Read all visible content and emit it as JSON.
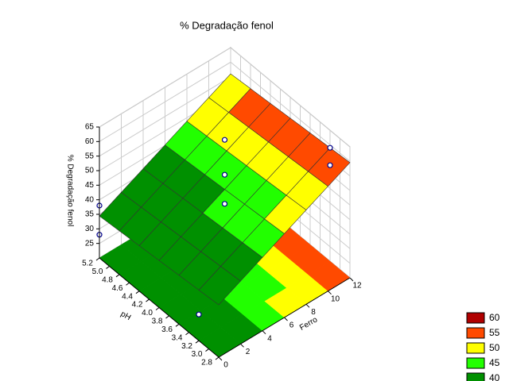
{
  "chart_data": {
    "type": "surface3d",
    "title": "% Degradação fenol",
    "x_label": "Ferro",
    "y_label": "pH",
    "z_label": "% Degradação fenol",
    "x": [
      0,
      2,
      4,
      6,
      8,
      10,
      12
    ],
    "y": [
      2.8,
      3.2,
      3.6,
      4.0,
      4.4,
      4.8,
      5.2
    ],
    "z": [
      [
        38,
        41.6,
        45.2,
        48.8,
        52.4,
        56,
        59.6
      ],
      [
        37.4,
        41,
        44.6,
        48.2,
        51.8,
        55.4,
        59
      ],
      [
        36.8,
        40.4,
        44,
        47.6,
        51.2,
        54.8,
        58.4
      ],
      [
        36.2,
        39.8,
        43.4,
        47,
        50.6,
        54.2,
        57.8
      ],
      [
        35.6,
        39.2,
        42.8,
        46.4,
        50,
        53.6,
        57.2
      ],
      [
        35,
        38.6,
        42.2,
        45.8,
        49.4,
        53,
        56.6
      ],
      [
        34.4,
        38,
        41.6,
        45.2,
        48.8,
        52.4,
        56
      ]
    ],
    "points": {
      "x": [
        0,
        0,
        6,
        6,
        6,
        12,
        12,
        0
      ],
      "y": [
        5.2,
        5.2,
        4.0,
        4.0,
        4.0,
        3.2,
        3.2,
        3.2
      ],
      "z": [
        38,
        28,
        64,
        52,
        42,
        59,
        53,
        29
      ]
    },
    "xlim": [
      0,
      12
    ],
    "ylim": [
      2.8,
      5.2
    ],
    "zlim": [
      20,
      65
    ],
    "xticks": [
      0,
      2,
      4,
      6,
      8,
      10,
      12
    ],
    "yticks": [
      2.8,
      {
        "value": 3,
        "label": "3.0"
      },
      3.2,
      3.4,
      3.6,
      3.8,
      {
        "value": 4,
        "label": "4.0"
      },
      4.2,
      4.4,
      4.6,
      4.8,
      {
        "value": 5,
        "label": "5.0"
      },
      5.2
    ],
    "zticks": [
      25,
      30,
      35,
      40,
      45,
      50,
      55,
      60,
      65
    ],
    "legend": {
      "levels": [
        60,
        55,
        50,
        45,
        40
      ],
      "colors": [
        "#b00000",
        "#ff4a00",
        "#ffff00",
        "#22ff00",
        "#009000"
      ]
    }
  }
}
